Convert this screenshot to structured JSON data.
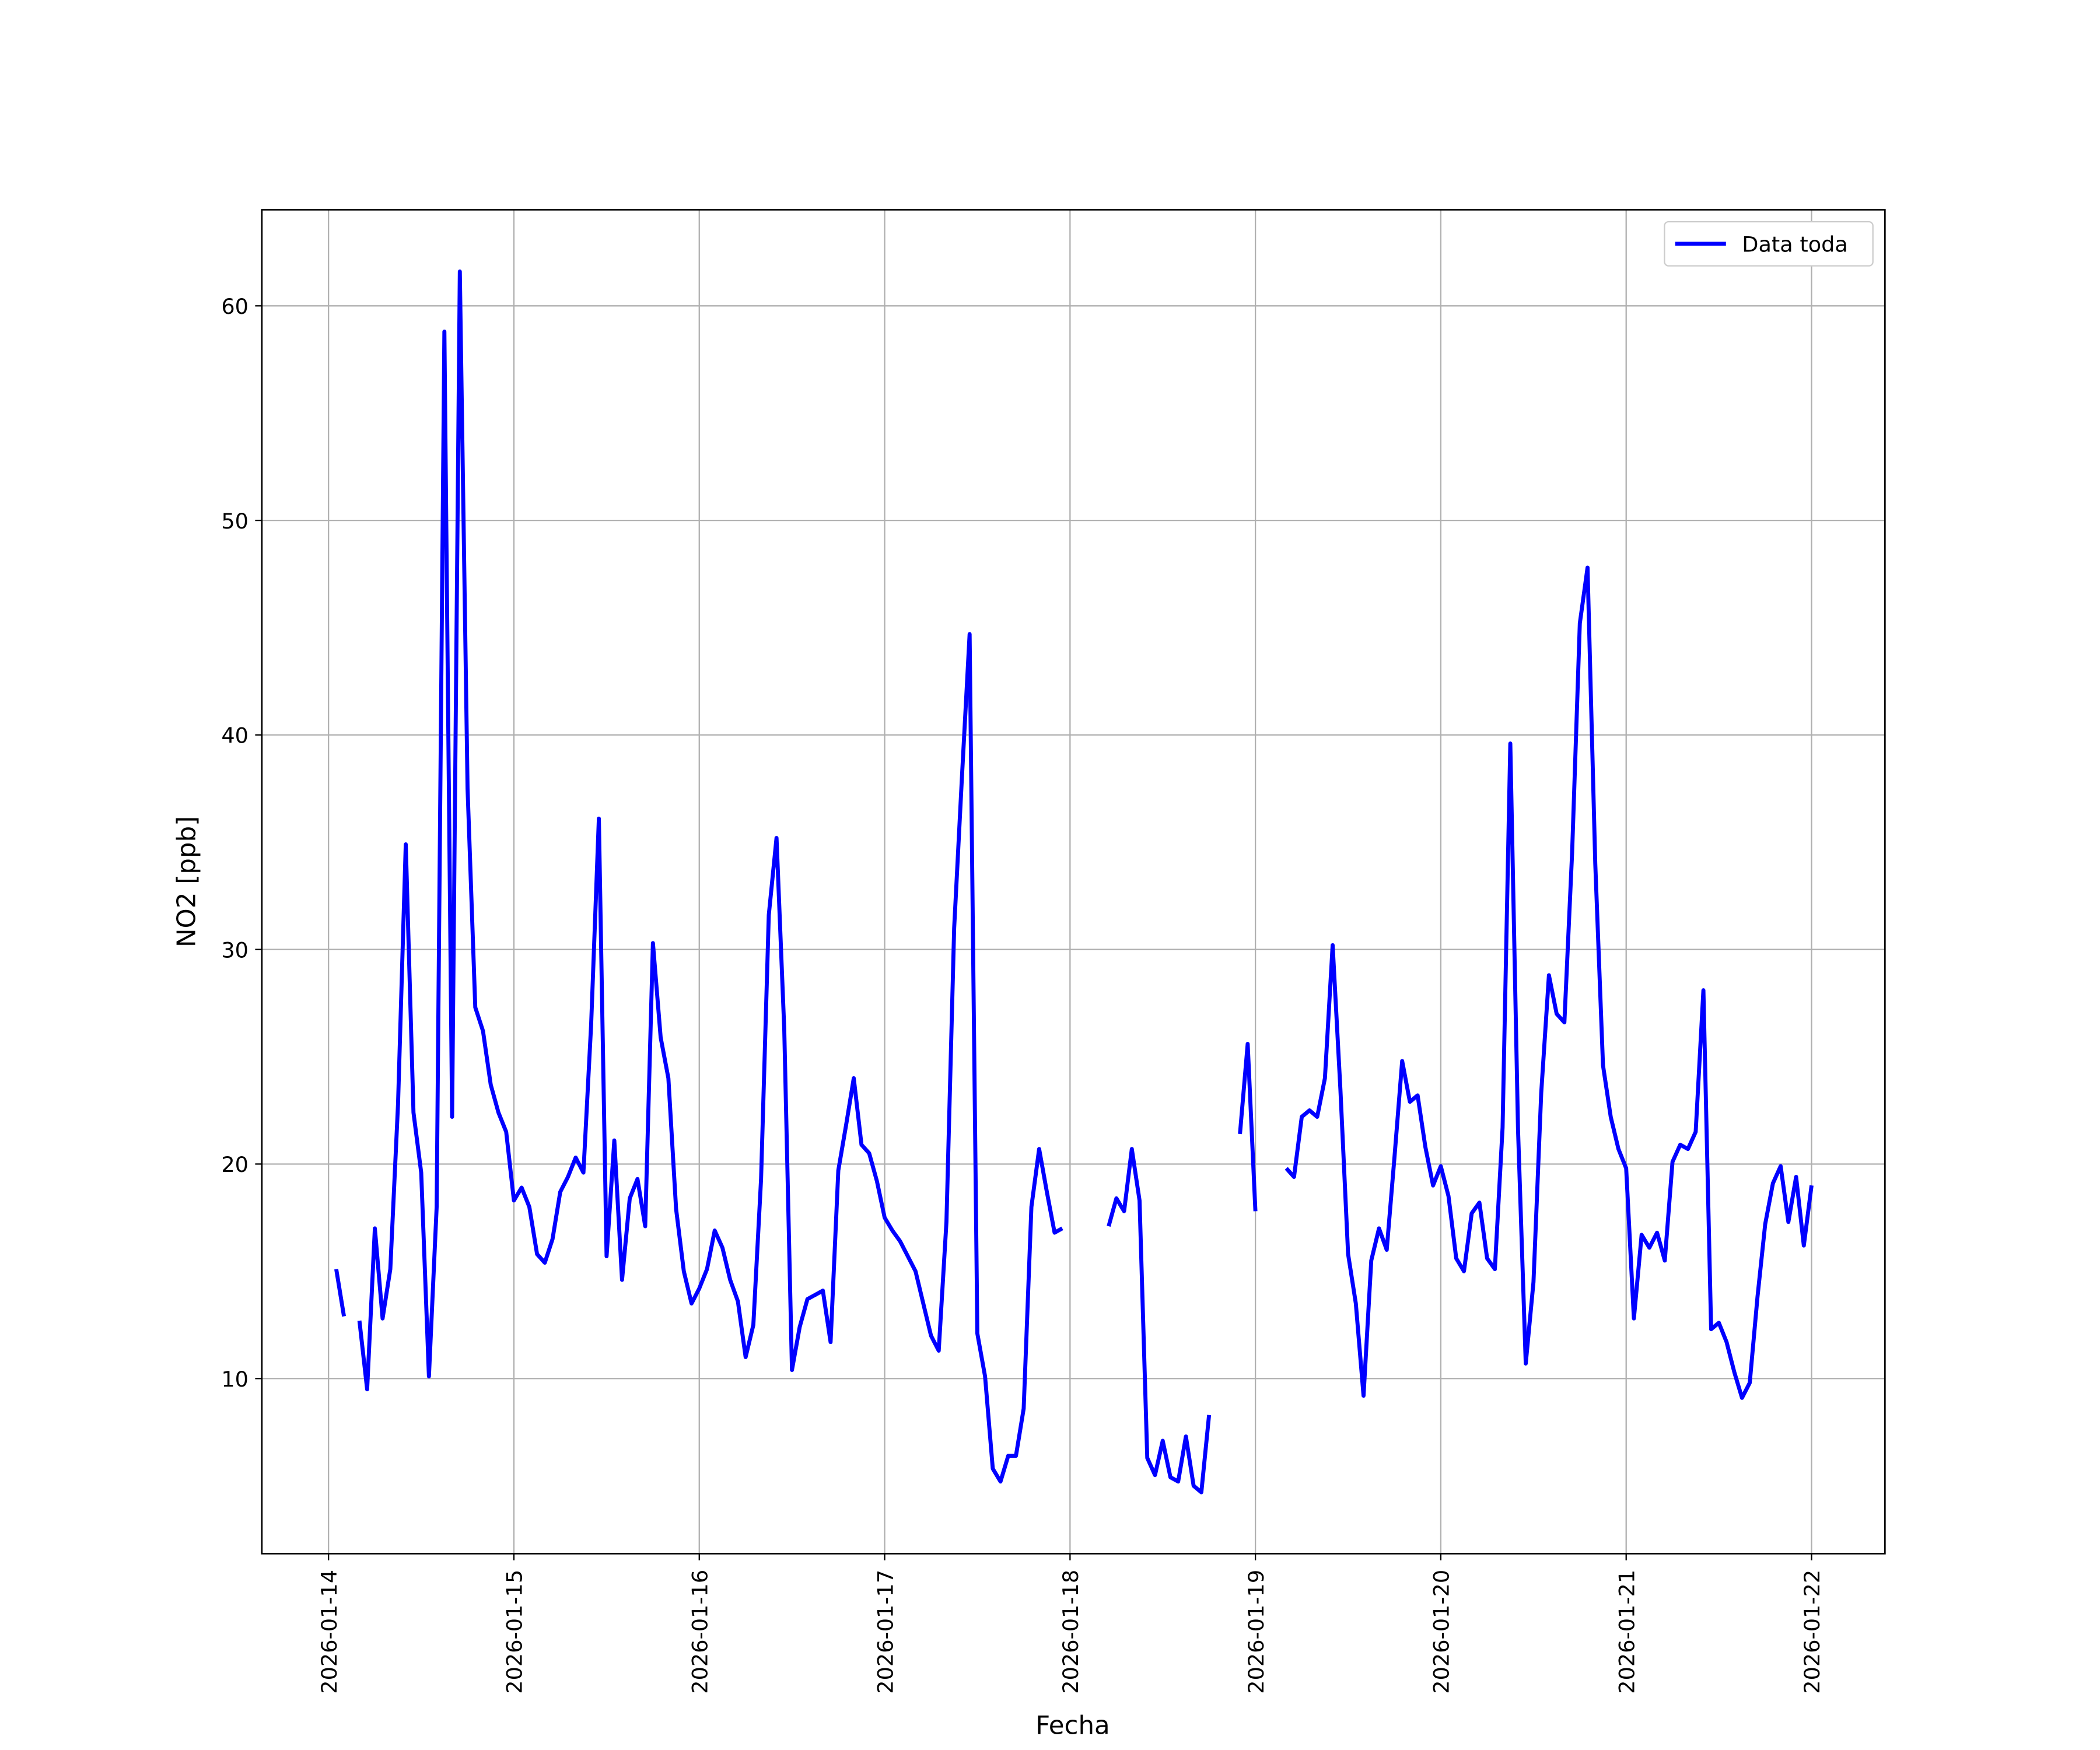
{
  "chart_data": {
    "type": "line",
    "xlabel": "Fecha",
    "ylabel": "NO2 [ppb]",
    "x": [
      "2026-01-14T01:00",
      "2026-01-14T02:00",
      "2026-01-14T03:00",
      "2026-01-14T04:00",
      "2026-01-14T05:00",
      "2026-01-14T06:00",
      "2026-01-14T07:00",
      "2026-01-14T08:00",
      "2026-01-14T09:00",
      "2026-01-14T10:00",
      "2026-01-14T11:00",
      "2026-01-14T12:00",
      "2026-01-14T13:00",
      "2026-01-14T14:00",
      "2026-01-14T15:00",
      "2026-01-14T16:00",
      "2026-01-14T17:00",
      "2026-01-14T18:00",
      "2026-01-14T19:00",
      "2026-01-14T20:00",
      "2026-01-14T21:00",
      "2026-01-14T22:00",
      "2026-01-14T23:00",
      "2026-01-15T00:00",
      "2026-01-15T01:00",
      "2026-01-15T02:00",
      "2026-01-15T03:00",
      "2026-01-15T04:00",
      "2026-01-15T05:00",
      "2026-01-15T06:00",
      "2026-01-15T07:00",
      "2026-01-15T08:00",
      "2026-01-15T09:00",
      "2026-01-15T10:00",
      "2026-01-15T11:00",
      "2026-01-15T12:00",
      "2026-01-15T13:00",
      "2026-01-15T14:00",
      "2026-01-15T15:00",
      "2026-01-15T16:00",
      "2026-01-15T17:00",
      "2026-01-15T18:00",
      "2026-01-15T19:00",
      "2026-01-15T20:00",
      "2026-01-15T21:00",
      "2026-01-15T22:00",
      "2026-01-15T23:00",
      "2026-01-16T00:00",
      "2026-01-16T01:00",
      "2026-01-16T02:00",
      "2026-01-16T03:00",
      "2026-01-16T04:00",
      "2026-01-16T05:00",
      "2026-01-16T06:00",
      "2026-01-16T07:00",
      "2026-01-16T08:00",
      "2026-01-16T09:00",
      "2026-01-16T10:00",
      "2026-01-16T11:00",
      "2026-01-16T12:00",
      "2026-01-16T13:00",
      "2026-01-16T14:00",
      "2026-01-16T15:00",
      "2026-01-16T16:00",
      "2026-01-16T17:00",
      "2026-01-16T18:00",
      "2026-01-16T19:00",
      "2026-01-16T20:00",
      "2026-01-16T21:00",
      "2026-01-16T22:00",
      "2026-01-16T23:00",
      "2026-01-17T00:00",
      "2026-01-17T01:00",
      "2026-01-17T02:00",
      "2026-01-17T03:00",
      "2026-01-17T04:00",
      "2026-01-17T05:00",
      "2026-01-17T06:00",
      "2026-01-17T07:00",
      "2026-01-17T08:00",
      "2026-01-17T09:00",
      "2026-01-17T10:00",
      "2026-01-17T11:00",
      "2026-01-17T12:00",
      "2026-01-17T13:00",
      "2026-01-17T14:00",
      "2026-01-17T15:00",
      "2026-01-17T16:00",
      "2026-01-17T17:00",
      "2026-01-17T18:00",
      "2026-01-17T19:00",
      "2026-01-17T20:00",
      "2026-01-17T21:00",
      "2026-01-17T22:00",
      "2026-01-17T23:00",
      "2026-01-18T00:00",
      "2026-01-18T01:00",
      "2026-01-18T02:00",
      "2026-01-18T03:00",
      "2026-01-18T04:00",
      "2026-01-18T05:00",
      "2026-01-18T06:00",
      "2026-01-18T07:00",
      "2026-01-18T08:00",
      "2026-01-18T09:00",
      "2026-01-18T10:00",
      "2026-01-18T11:00",
      "2026-01-18T12:00",
      "2026-01-18T13:00",
      "2026-01-18T14:00",
      "2026-01-18T15:00",
      "2026-01-18T16:00",
      "2026-01-18T17:00",
      "2026-01-18T18:00",
      "2026-01-18T19:00",
      "2026-01-18T20:00",
      "2026-01-18T21:00",
      "2026-01-18T22:00",
      "2026-01-18T23:00",
      "2026-01-19T00:00",
      "2026-01-19T01:00",
      "2026-01-19T02:00",
      "2026-01-19T03:00",
      "2026-01-19T04:00",
      "2026-01-19T05:00",
      "2026-01-19T06:00",
      "2026-01-19T07:00",
      "2026-01-19T08:00",
      "2026-01-19T09:00",
      "2026-01-19T10:00",
      "2026-01-19T11:00",
      "2026-01-19T12:00",
      "2026-01-19T13:00",
      "2026-01-19T14:00",
      "2026-01-19T15:00",
      "2026-01-19T16:00",
      "2026-01-19T17:00",
      "2026-01-19T18:00",
      "2026-01-19T19:00",
      "2026-01-19T20:00",
      "2026-01-19T21:00",
      "2026-01-19T22:00",
      "2026-01-19T23:00",
      "2026-01-20T00:00",
      "2026-01-20T01:00",
      "2026-01-20T02:00",
      "2026-01-20T03:00",
      "2026-01-20T04:00",
      "2026-01-20T05:00",
      "2026-01-20T06:00",
      "2026-01-20T07:00",
      "2026-01-20T08:00",
      "2026-01-20T09:00",
      "2026-01-20T10:00",
      "2026-01-20T11:00",
      "2026-01-20T12:00",
      "2026-01-20T13:00",
      "2026-01-20T14:00",
      "2026-01-20T15:00",
      "2026-01-20T16:00",
      "2026-01-20T17:00",
      "2026-01-20T18:00",
      "2026-01-20T19:00",
      "2026-01-20T20:00",
      "2026-01-20T21:00",
      "2026-01-20T22:00",
      "2026-01-20T23:00",
      "2026-01-21T00:00",
      "2026-01-21T01:00",
      "2026-01-21T02:00",
      "2026-01-21T03:00",
      "2026-01-21T04:00",
      "2026-01-21T05:00",
      "2026-01-21T06:00",
      "2026-01-21T07:00",
      "2026-01-21T08:00",
      "2026-01-21T09:00",
      "2026-01-21T10:00",
      "2026-01-21T11:00",
      "2026-01-21T12:00",
      "2026-01-21T13:00",
      "2026-01-21T14:00",
      "2026-01-21T15:00",
      "2026-01-21T16:00",
      "2026-01-21T17:00",
      "2026-01-21T18:00",
      "2026-01-21T19:00",
      "2026-01-21T20:00",
      "2026-01-21T21:00",
      "2026-01-21T22:00",
      "2026-01-21T23:00",
      "2026-01-22T00:00"
    ],
    "series": [
      {
        "name": "Data toda",
        "color": "#0000ff",
        "values": [
          15.1,
          12.9,
          null,
          12.7,
          9.5,
          17.0,
          12.8,
          15.1,
          22.8,
          34.9,
          22.4,
          19.6,
          10.1,
          18.0,
          58.8,
          22.2,
          61.6,
          37.5,
          27.3,
          26.2,
          23.7,
          22.4,
          21.5,
          18.3,
          18.9,
          18.0,
          15.8,
          15.4,
          16.5,
          18.7,
          19.4,
          20.3,
          19.6,
          26.5,
          36.1,
          15.7,
          21.1,
          14.6,
          18.4,
          19.3,
          17.1,
          30.3,
          25.9,
          24.0,
          17.9,
          15.0,
          13.5,
          14.2,
          15.1,
          16.9,
          16.1,
          14.6,
          13.6,
          11.0,
          12.5,
          19.3,
          31.6,
          35.2,
          26.3,
          10.4,
          12.4,
          13.7,
          13.9,
          14.1,
          11.7,
          19.7,
          21.8,
          24.0,
          20.9,
          20.5,
          19.2,
          17.5,
          16.9,
          16.4,
          15.7,
          15.0,
          13.5,
          12.0,
          11.3,
          17.3,
          31.0,
          38.0,
          44.7,
          12.1,
          10.1,
          5.8,
          5.2,
          6.4,
          6.4,
          8.6,
          18.0,
          20.7,
          18.7,
          16.8,
          17.0,
          null,
          null,
          null,
          null,
          null,
          17.1,
          18.4,
          17.8,
          20.7,
          18.3,
          6.3,
          5.5,
          7.1,
          5.4,
          5.2,
          7.3,
          5.0,
          4.7,
          8.3,
          null,
          null,
          null,
          21.4,
          25.6,
          17.8,
          null,
          null,
          null,
          19.8,
          19.4,
          22.2,
          22.5,
          22.2,
          24.0,
          30.2,
          23.5,
          15.8,
          13.5,
          9.2,
          15.5,
          17.0,
          16.0,
          20.3,
          24.8,
          22.9,
          23.2,
          20.8,
          19.0,
          19.9,
          18.5,
          15.6,
          15.0,
          17.7,
          18.2,
          15.6,
          15.1,
          21.7,
          39.6,
          21.6,
          10.7,
          14.5,
          23.3,
          28.8,
          27.0,
          26.6,
          34.5,
          45.2,
          47.8,
          34.0,
          24.6,
          22.2,
          20.7,
          19.8,
          12.8,
          16.7,
          16.1,
          16.8,
          15.5,
          20.1,
          20.9,
          20.7,
          21.5,
          28.1,
          12.3,
          12.6,
          11.7,
          10.3,
          9.1,
          9.8,
          13.8,
          17.2,
          19.1,
          19.9,
          17.3,
          19.4,
          16.2,
          19.0
        ]
      }
    ],
    "xlim": [
      "2026-01-13T15:22",
      "2026-01-22T09:30"
    ],
    "xticks": [
      "2026-01-14",
      "2026-01-15",
      "2026-01-16",
      "2026-01-17",
      "2026-01-18",
      "2026-01-19",
      "2026-01-20",
      "2026-01-21",
      "2026-01-22"
    ],
    "ylim": [
      1.84,
      64.48
    ],
    "yticks": [
      10,
      20,
      30,
      40,
      50,
      60
    ],
    "grid": true,
    "legend": "upper right"
  }
}
